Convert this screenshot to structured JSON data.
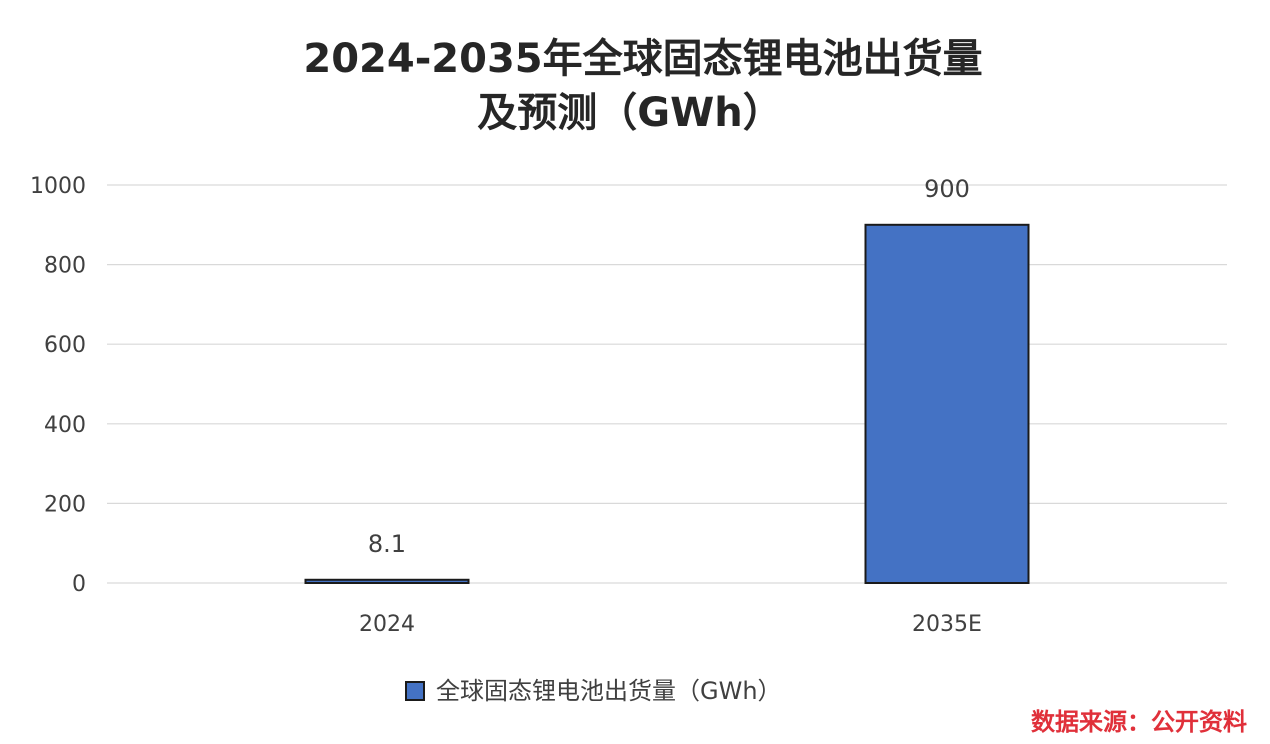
{
  "chart_data": {
    "type": "bar",
    "title": [
      "2024-2035年全球固态锂电池出货量",
      "及预测（GWh）"
    ],
    "categories": [
      "2024",
      "2035E"
    ],
    "series": [
      {
        "name": "全球固态锂电池出货量（GWh）",
        "values": [
          8.1,
          900
        ],
        "color": "#4472c4",
        "border_color": "#1a1a1a"
      }
    ],
    "data_labels": [
      "8.1",
      "900"
    ],
    "ylim": [
      0,
      1000
    ],
    "yticks": [
      0,
      200,
      400,
      600,
      800,
      1000
    ],
    "ytick_labels": [
      "0",
      "200",
      "400",
      "600",
      "800",
      "1000"
    ],
    "grid": true,
    "grid_color": "#d9d9d9",
    "legend_position": "bottom"
  },
  "source_note": "数据来源：公开资料",
  "source_color": "#e0303a"
}
